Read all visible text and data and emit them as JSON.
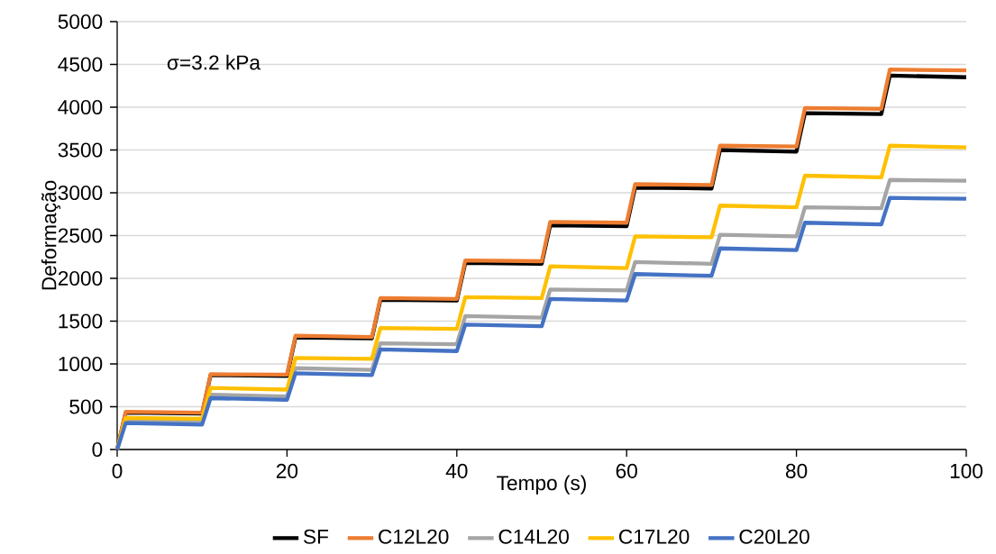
{
  "chart_data": {
    "type": "line",
    "xlabel": "Tempo (s)",
    "ylabel": "Deformação",
    "annotations": [
      "σ=3.2 kPa"
    ],
    "x": [
      0,
      1,
      10,
      11,
      20,
      21,
      30,
      31,
      40,
      41,
      50,
      51,
      60,
      61,
      70,
      71,
      80,
      81,
      90,
      91,
      100
    ],
    "xlim": [
      0,
      100
    ],
    "xticks": [
      0,
      20,
      40,
      60,
      80,
      100
    ],
    "ylim": [
      0,
      5000
    ],
    "yticks": [
      0,
      500,
      1000,
      1500,
      2000,
      2500,
      3000,
      3500,
      4000,
      4500,
      5000
    ],
    "grid": "y",
    "legend": "bottom",
    "marker": "none",
    "line_style": "solid",
    "series": [
      {
        "name": "SF",
        "color": "#000000",
        "values": [
          0,
          430,
          420,
          870,
          860,
          1310,
          1300,
          1750,
          1740,
          2180,
          2170,
          2620,
          2610,
          3060,
          3050,
          3500,
          3480,
          3930,
          3920,
          4370,
          4350
        ]
      },
      {
        "name": "C12L20",
        "color": "#ed7d31",
        "values": [
          0,
          440,
          430,
          880,
          875,
          1330,
          1315,
          1770,
          1760,
          2210,
          2200,
          2660,
          2650,
          3100,
          3090,
          3550,
          3540,
          3990,
          3980,
          4440,
          4430
        ]
      },
      {
        "name": "C14L20",
        "color": "#a5a5a5",
        "values": [
          0,
          340,
          330,
          640,
          620,
          950,
          930,
          1240,
          1230,
          1560,
          1540,
          1870,
          1860,
          2190,
          2170,
          2510,
          2490,
          2830,
          2820,
          3150,
          3140
        ]
      },
      {
        "name": "C17L20",
        "color": "#ffc000",
        "values": [
          0,
          370,
          360,
          720,
          700,
          1070,
          1060,
          1420,
          1410,
          1780,
          1770,
          2140,
          2120,
          2490,
          2480,
          2850,
          2830,
          3200,
          3180,
          3550,
          3530
        ]
      },
      {
        "name": "C20L20",
        "color": "#4472c4",
        "values": [
          0,
          310,
          290,
          600,
          580,
          890,
          870,
          1170,
          1150,
          1460,
          1440,
          1760,
          1740,
          2050,
          2030,
          2350,
          2330,
          2650,
          2630,
          2940,
          2930
        ]
      }
    ]
  }
}
